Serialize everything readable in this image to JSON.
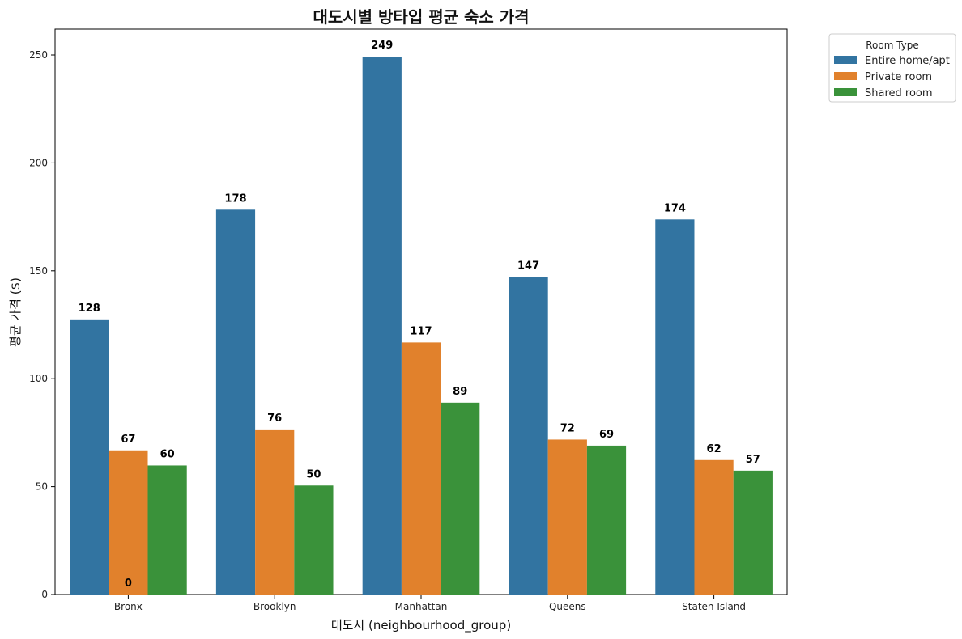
{
  "chart_data": {
    "type": "bar",
    "title": "대도시별 방타입 평균 숙소 가격",
    "xlabel": "대도시 (neighbourhood_group)",
    "ylabel": "평균 가격 ($)",
    "categories": [
      "Bronx",
      "Brooklyn",
      "Manhattan",
      "Queens",
      "Staten Island"
    ],
    "ylim": [
      0,
      262
    ],
    "yticks": [
      0,
      50,
      100,
      150,
      200,
      250
    ],
    "legend": {
      "title": "Room Type",
      "position": "outside-top-right"
    },
    "grid": false,
    "series": [
      {
        "name": "Entire home/apt",
        "color": "#3274a1",
        "values": [
          127.5,
          178.3,
          249.2,
          147.1,
          173.8
        ],
        "labels": [
          "128",
          "178",
          "249",
          "147",
          "174"
        ]
      },
      {
        "name": "Private room",
        "color": "#e1812c",
        "values": [
          66.8,
          76.5,
          116.8,
          71.8,
          62.3
        ],
        "labels": [
          "67",
          "76",
          "117",
          "72",
          "62"
        ]
      },
      {
        "name": "Shared room",
        "color": "#3a923a",
        "values": [
          59.8,
          50.5,
          88.9,
          69.0,
          57.4
        ],
        "labels": [
          "60",
          "50",
          "89",
          "69",
          "57"
        ]
      }
    ],
    "annotations": [
      {
        "text": "0",
        "category": "Bronx",
        "value": 0
      }
    ]
  }
}
